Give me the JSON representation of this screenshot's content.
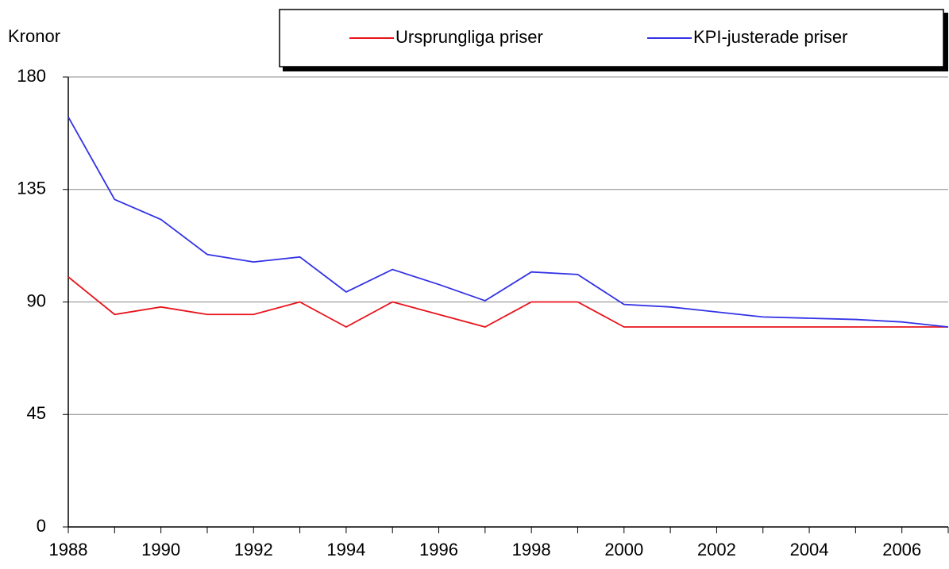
{
  "chart_data": {
    "type": "line",
    "y_label": "Kronor",
    "x": [
      1988,
      1989,
      1990,
      1991,
      1992,
      1993,
      1994,
      1995,
      1996,
      1997,
      1998,
      1999,
      2000,
      2001,
      2002,
      2003,
      2004,
      2005,
      2006,
      2007
    ],
    "series": [
      {
        "name": "Ursprungliga priser",
        "color": "#e8141c",
        "values": [
          100,
          85,
          88,
          85,
          85,
          90,
          80,
          90,
          85,
          80,
          90,
          90,
          80,
          80,
          80,
          80,
          80,
          80,
          80,
          80
        ]
      },
      {
        "name": "KPI-justerade priser",
        "color": "#3333e6",
        "values": [
          164,
          131,
          123,
          109,
          106,
          108,
          94,
          103,
          97,
          90.5,
          102,
          101,
          89,
          88,
          86,
          84,
          83.5,
          83,
          82,
          80
        ]
      }
    ],
    "xlim": [
      1988,
      2007
    ],
    "xticks": [
      1988,
      1990,
      1992,
      1994,
      1996,
      1998,
      2000,
      2002,
      2004,
      2006
    ],
    "xminorticks": [
      1989,
      1991,
      1993,
      1995,
      1997,
      1999,
      2001,
      2003,
      2005,
      2007
    ],
    "ylim": [
      0,
      180
    ],
    "yticks": [
      0,
      45,
      90,
      135,
      180
    ],
    "grid": true
  }
}
